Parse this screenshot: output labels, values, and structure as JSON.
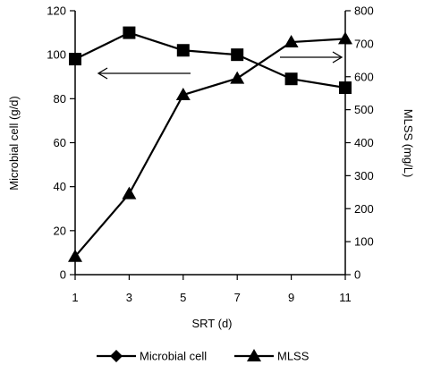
{
  "chart_data": {
    "type": "line",
    "xlabel": "SRT (d)",
    "ylabel_left": "Microbial cell (g/d)",
    "ylabel_right": "MLSS (mg/L)",
    "x": [
      1,
      3,
      5,
      7,
      9,
      11
    ],
    "x_ticks": [
      "1",
      "3",
      "5",
      "7",
      "9",
      "11"
    ],
    "ylim_left": [
      0,
      120
    ],
    "y_ticks_left": [
      "0",
      "20",
      "40",
      "60",
      "80",
      "100",
      "120"
    ],
    "ylim_right": [
      0,
      800
    ],
    "y_ticks_right": [
      "0",
      "100",
      "200",
      "300",
      "400",
      "500",
      "600",
      "700",
      "800"
    ],
    "grid": false,
    "legend_position": "bottom",
    "series": [
      {
        "name": "Microbial cell",
        "axis": "left",
        "marker": "square",
        "values": [
          98,
          110,
          102,
          100,
          89,
          85
        ]
      },
      {
        "name": "MLSS",
        "axis": "right",
        "marker": "triangle",
        "values": [
          55,
          245,
          545,
          595,
          705,
          715
        ]
      }
    ]
  }
}
